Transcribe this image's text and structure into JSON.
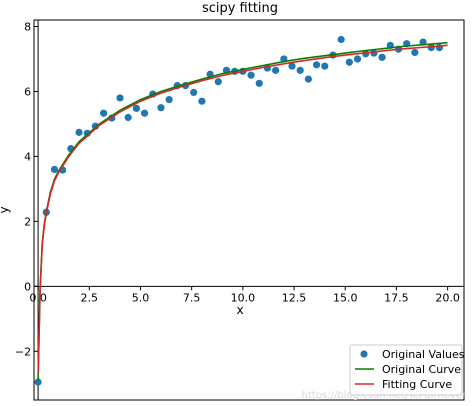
{
  "chart_data": {
    "type": "scatter",
    "title": "scipy fitting",
    "xlabel": "x",
    "ylabel": "y",
    "xlim": [
      -0.2,
      20.8
    ],
    "ylim": [
      -3.5,
      8.2
    ],
    "xticks": [
      0.0,
      2.5,
      5.0,
      7.5,
      10.0,
      12.5,
      15.0,
      17.5,
      20.0
    ],
    "xtick_labels": [
      "0.0",
      "2.5",
      "5.0",
      "7.5",
      "10.0",
      "12.5",
      "15.0",
      "17.5",
      "20.0"
    ],
    "yticks": [
      -2,
      0,
      2,
      4,
      6,
      8
    ],
    "ytick_labels": [
      "−2",
      "0",
      "2",
      "4",
      "6",
      "8"
    ],
    "legend_position": "lower-right",
    "grid": false,
    "series": [
      {
        "name": "Original Values",
        "kind": "scatter",
        "color": "#1f77b4",
        "x": [
          0.0,
          0.4,
          0.8,
          1.2,
          1.6,
          2.0,
          2.4,
          2.8,
          3.2,
          3.6,
          4.0,
          4.4,
          4.8,
          5.2,
          5.6,
          6.0,
          6.4,
          6.8,
          7.2,
          7.6,
          8.0,
          8.4,
          8.8,
          9.2,
          9.6,
          10.0,
          10.4,
          10.8,
          11.2,
          11.6,
          12.0,
          12.4,
          12.8,
          13.2,
          13.6,
          14.0,
          14.4,
          14.8,
          15.2,
          15.6,
          16.0,
          16.4,
          16.8,
          17.2,
          17.6,
          18.0,
          18.4,
          18.8,
          19.2,
          19.6
        ],
        "y": [
          -2.95,
          2.28,
          3.6,
          3.58,
          4.24,
          4.74,
          4.71,
          4.93,
          5.33,
          5.18,
          5.8,
          5.2,
          5.48,
          5.33,
          5.92,
          5.5,
          5.75,
          6.18,
          6.18,
          5.97,
          5.7,
          6.53,
          6.3,
          6.65,
          6.62,
          6.62,
          6.5,
          6.25,
          6.72,
          6.65,
          7.0,
          6.78,
          6.65,
          6.38,
          6.82,
          6.78,
          7.12,
          7.6,
          6.9,
          7.0,
          7.16,
          7.18,
          7.05,
          7.42,
          7.3,
          7.47,
          7.2,
          7.52,
          7.35,
          7.35
        ]
      },
      {
        "name": "Original Curve",
        "kind": "line",
        "color": "#008000",
        "x": [
          0.0,
          0.1,
          0.2,
          0.3,
          0.4,
          0.6,
          0.8,
          1.0,
          1.5,
          2.0,
          3.0,
          4.0,
          5.0,
          6.0,
          7.0,
          8.0,
          9.0,
          10.0,
          11.0,
          12.0,
          13.0,
          14.0,
          15.0,
          16.0,
          17.0,
          18.0,
          19.0,
          20.0
        ],
        "y": [
          -2.9,
          -0.1,
          1.3,
          1.9,
          2.3,
          2.9,
          3.3,
          3.55,
          4.05,
          4.45,
          5.0,
          5.42,
          5.75,
          6.0,
          6.2,
          6.38,
          6.55,
          6.68,
          6.8,
          6.92,
          7.02,
          7.1,
          7.18,
          7.26,
          7.33,
          7.4,
          7.45,
          7.5
        ]
      },
      {
        "name": "Fitting Curve",
        "kind": "line",
        "color": "#d62728",
        "x": [
          0.0,
          0.1,
          0.2,
          0.3,
          0.4,
          0.6,
          0.8,
          1.0,
          1.5,
          2.0,
          3.0,
          4.0,
          5.0,
          6.0,
          7.0,
          8.0,
          9.0,
          10.0,
          11.0,
          12.0,
          13.0,
          14.0,
          15.0,
          16.0,
          17.0,
          18.0,
          19.0,
          20.0
        ],
        "y": [
          -2.7,
          -0.1,
          1.25,
          1.85,
          2.25,
          2.85,
          3.25,
          3.5,
          4.0,
          4.4,
          4.96,
          5.37,
          5.7,
          5.95,
          6.15,
          6.33,
          6.49,
          6.62,
          6.74,
          6.85,
          6.95,
          7.04,
          7.12,
          7.19,
          7.26,
          7.32,
          7.37,
          7.42
        ]
      }
    ]
  },
  "watermark": "https://blog.csdn.net/TeFuirnever"
}
